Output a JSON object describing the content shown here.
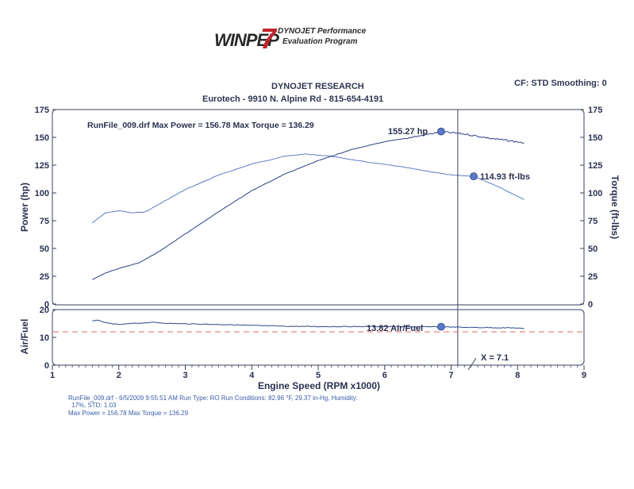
{
  "logo": {
    "text": "WINPEP",
    "number": "7",
    "line1": "DYNOJET Performance",
    "line2": "Evaluation Program"
  },
  "header": {
    "title": "DYNOJET RESEARCH",
    "subtitle": "Eurotech - 9910 N. Alpine Rd - 815-654-4191",
    "settings": "CF: STD  Smoothing: 0"
  },
  "top_chart": {
    "summary": "RunFile_009.drf Max Power = 156.78     Max Torque = 136.29",
    "power_marker_label": "155.27 hp",
    "torque_marker_label": "114.93 ft-lbs"
  },
  "bottom_chart": {
    "af_marker_label": "13.82 Air/Fuel",
    "cursor_label": "X = 7.1"
  },
  "footer": {
    "line1": "RunFile_009.drf - 6/5/2009 9:55:51 AM  Run Type: RO  Run Conditions: 82.96 °F, 29.37 in-Hg,  Humidity:",
    "line2": "17%, STD: 1.03",
    "line3": "Max Power = 156.78  Max Torque = 136.29"
  },
  "colors": {
    "power_line": "#2b3f86",
    "torque_line": "#5d7cc4",
    "af_line": "#2b4a8f",
    "reference_line": "#e06a6a",
    "marker": "#5a78c8",
    "axis_text": "#2a3050"
  },
  "chart_data": [
    {
      "type": "line",
      "xlabel": "Engine Speed (RPM x1000)",
      "ylabel": "Power (hp)",
      "y2label": "Torque (ft-lbs)",
      "xlim": [
        1,
        9
      ],
      "ylim": [
        0,
        175
      ],
      "y2lim": [
        0,
        175
      ],
      "xticks": [
        1,
        2,
        3,
        4,
        5,
        6,
        7,
        8,
        9
      ],
      "yticks": [
        0,
        25,
        50,
        75,
        100,
        125,
        150,
        175
      ],
      "cursor_x": 7.1,
      "series": [
        {
          "axis": "left",
          "x": [
            1.6,
            1.8,
            2.0,
            2.3,
            2.6,
            3.0,
            3.5,
            4.0,
            4.5,
            5.0,
            5.5,
            6.0,
            6.5,
            6.85,
            7.2,
            7.6,
            8.0,
            8.1
          ],
          "values": [
            22,
            28,
            32,
            37,
            47,
            63,
            83,
            102,
            117,
            129,
            139,
            146,
            151,
            155,
            153,
            149,
            146,
            145
          ]
        },
        {
          "axis": "right",
          "x": [
            1.6,
            1.8,
            2.0,
            2.2,
            2.4,
            2.7,
            3.0,
            3.5,
            4.0,
            4.5,
            4.8,
            5.2,
            5.7,
            6.2,
            6.7,
            7.0,
            7.34,
            7.7,
            8.1
          ],
          "values": [
            73,
            82,
            84,
            82,
            83,
            93,
            103,
            116,
            126,
            133,
            135,
            133,
            128,
            124,
            119,
            116,
            114.93,
            106,
            94
          ]
        }
      ],
      "markers": [
        {
          "x": 6.85,
          "y": 155.27,
          "axis": "left"
        },
        {
          "x": 7.34,
          "y": 114.93,
          "axis": "right"
        }
      ]
    },
    {
      "type": "line",
      "ylabel": "Air/Fuel",
      "xlim": [
        1,
        9
      ],
      "ylim": [
        0,
        20
      ],
      "yticks": [
        0,
        10,
        20
      ],
      "reference_value": 12,
      "cursor_x": 7.1,
      "series": [
        {
          "x": [
            1.6,
            1.7,
            1.8,
            2.0,
            2.2,
            2.5,
            2.8,
            3.2,
            3.6,
            4.0,
            4.5,
            5.0,
            5.5,
            6.0,
            6.5,
            6.85,
            7.2,
            7.6,
            8.0,
            8.1
          ],
          "values": [
            15.8,
            16.2,
            15.2,
            14.6,
            15.0,
            15.4,
            15.0,
            14.8,
            14.6,
            14.3,
            14.0,
            13.9,
            13.9,
            13.9,
            13.8,
            13.82,
            13.6,
            13.5,
            13.4,
            13.1
          ]
        }
      ],
      "markers": [
        {
          "x": 6.85,
          "y": 13.82
        }
      ]
    }
  ]
}
